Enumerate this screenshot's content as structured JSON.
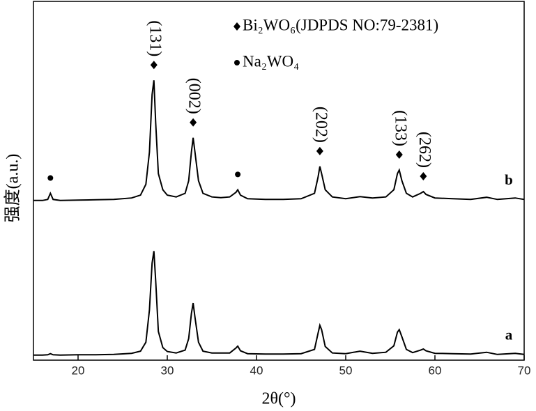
{
  "chart_data": {
    "type": "line",
    "x_label": "2θ(°)",
    "y_label": "强度(a.u.)",
    "xlim": [
      15,
      70
    ],
    "xticks": [
      20,
      30,
      40,
      50,
      60,
      70
    ],
    "ylim": [
      0,
      100
    ],
    "x": [
      15,
      16,
      16.6,
      16.9,
      17.2,
      18,
      20,
      22,
      24,
      26,
      27,
      27.6,
      28,
      28.3,
      28.5,
      28.7,
      29,
      29.5,
      30,
      31,
      32,
      32.4,
      32.7,
      32.9,
      33.1,
      33.5,
      34,
      35,
      36,
      37,
      37.7,
      37.9,
      38.2,
      39,
      41,
      43,
      45,
      46.5,
      46.9,
      47.1,
      47.3,
      47.7,
      48.5,
      50,
      51.6,
      53,
      54.5,
      55.4,
      55.8,
      56,
      56.3,
      56.8,
      57.5,
      58.4,
      58.7,
      59,
      60,
      62,
      64,
      65.8,
      67,
      69,
      70
    ],
    "series": [
      {
        "name": "a",
        "color": "#000000",
        "values": [
          1.4,
          1.4,
          1.5,
          1.8,
          1.5,
          1.4,
          1.5,
          1.5,
          1.6,
          1.9,
          2.5,
          5,
          14,
          27,
          30.4,
          22,
          8,
          3.5,
          2.4,
          2,
          2.8,
          6,
          13,
          15.9,
          12,
          5,
          2.5,
          2,
          2,
          2,
          3.4,
          3.9,
          2.6,
          1.8,
          1.7,
          1.7,
          1.8,
          3,
          7.5,
          9.7,
          8.5,
          3.8,
          2,
          1.8,
          2.5,
          1.9,
          2.2,
          4,
          7.8,
          8.5,
          6.5,
          3,
          2.1,
          2.8,
          3.1,
          2.6,
          1.9,
          1.8,
          1.7,
          2.2,
          1.6,
          1.9,
          1.6
        ]
      },
      {
        "name": "b",
        "color": "#000000",
        "values": [
          44.5,
          44.5,
          44.8,
          46.5,
          44.8,
          44.5,
          44.6,
          44.7,
          44.8,
          45.2,
          46,
          49,
          58,
          74,
          78,
          66,
          52,
          47.5,
          46,
          45.5,
          46.5,
          50,
          58,
          62,
          58,
          50,
          46.5,
          45.5,
          45.3,
          45.5,
          46.8,
          47.5,
          46,
          45,
          44.8,
          44.8,
          45,
          46.5,
          51,
          54,
          52,
          47.5,
          45.5,
          45,
          45.6,
          45.2,
          45.5,
          47.5,
          52,
          53,
          50,
          46.5,
          45.5,
          46.5,
          47,
          46.2,
          45.2,
          45,
          44.8,
          45.4,
          44.8,
          45.2,
          44.8
        ]
      }
    ],
    "annotations": [
      {
        "label": "(131)",
        "x": 28.5,
        "marker": "diamond"
      },
      {
        "label": "(002)",
        "x": 32.9,
        "marker": "diamond"
      },
      {
        "label": "(202)",
        "x": 47.1,
        "marker": "diamond"
      },
      {
        "label": "(133)",
        "x": 56,
        "marker": "diamond"
      },
      {
        "label": "(262)",
        "x": 58.7,
        "marker": "diamond"
      },
      {
        "x": 16.9,
        "marker": "dot"
      },
      {
        "x": 37.9,
        "marker": "dot"
      }
    ],
    "legend": [
      {
        "label": "Bi₂WO₆(JDPDS NO:79-2381)",
        "marker": "diamond"
      },
      {
        "label": "Na₂WO₄",
        "marker": "dot"
      }
    ]
  }
}
